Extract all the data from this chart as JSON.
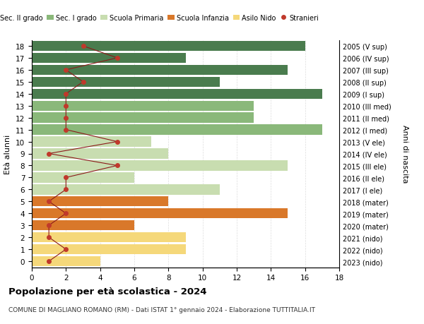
{
  "ages": [
    18,
    17,
    16,
    15,
    14,
    13,
    12,
    11,
    10,
    9,
    8,
    7,
    6,
    5,
    4,
    3,
    2,
    1,
    0
  ],
  "right_labels": [
    "2005 (V sup)",
    "2006 (IV sup)",
    "2007 (III sup)",
    "2008 (II sup)",
    "2009 (I sup)",
    "2010 (III med)",
    "2011 (II med)",
    "2012 (I med)",
    "2013 (V ele)",
    "2014 (IV ele)",
    "2015 (III ele)",
    "2016 (II ele)",
    "2017 (I ele)",
    "2018 (mater)",
    "2019 (mater)",
    "2020 (mater)",
    "2021 (nido)",
    "2022 (nido)",
    "2023 (nido)"
  ],
  "bar_values": [
    16,
    9,
    15,
    11,
    17,
    13,
    13,
    17,
    7,
    8,
    15,
    6,
    11,
    8,
    15,
    6,
    9,
    9,
    4
  ],
  "bar_colors": [
    "#4a7c4e",
    "#4a7c4e",
    "#4a7c4e",
    "#4a7c4e",
    "#4a7c4e",
    "#8ab87a",
    "#8ab87a",
    "#8ab87a",
    "#c8ddb0",
    "#c8ddb0",
    "#c8ddb0",
    "#c8ddb0",
    "#c8ddb0",
    "#d9782a",
    "#d9782a",
    "#d9782a",
    "#f5d87a",
    "#f5d87a",
    "#f5d87a"
  ],
  "stranieri_values": [
    3,
    5,
    2,
    3,
    2,
    2,
    2,
    2,
    5,
    1,
    5,
    2,
    2,
    1,
    2,
    1,
    1,
    2,
    1
  ],
  "title": "Popolazione per età scolastica - 2024",
  "subtitle": "COMUNE DI MAGLIANO ROMANO (RM) - Dati ISTAT 1° gennaio 2024 - Elaborazione TUTTITALIA.IT",
  "ylabel": "Età alunni",
  "right_ylabel": "Anni di nascita",
  "xlim": [
    0,
    18
  ],
  "xticks": [
    0,
    2,
    4,
    6,
    8,
    10,
    12,
    14,
    16,
    18
  ],
  "legend_labels": [
    "Sec. II grado",
    "Sec. I grado",
    "Scuola Primaria",
    "Scuola Infanzia",
    "Asilo Nido",
    "Stranieri"
  ],
  "legend_colors": [
    "#4a7c4e",
    "#8ab87a",
    "#c8ddb0",
    "#d9782a",
    "#f5d87a",
    "#c0392b"
  ],
  "stranieri_color": "#c0392b",
  "line_color": "#8b1a1a",
  "bg_color": "#ffffff",
  "grid_color": "#dddddd"
}
